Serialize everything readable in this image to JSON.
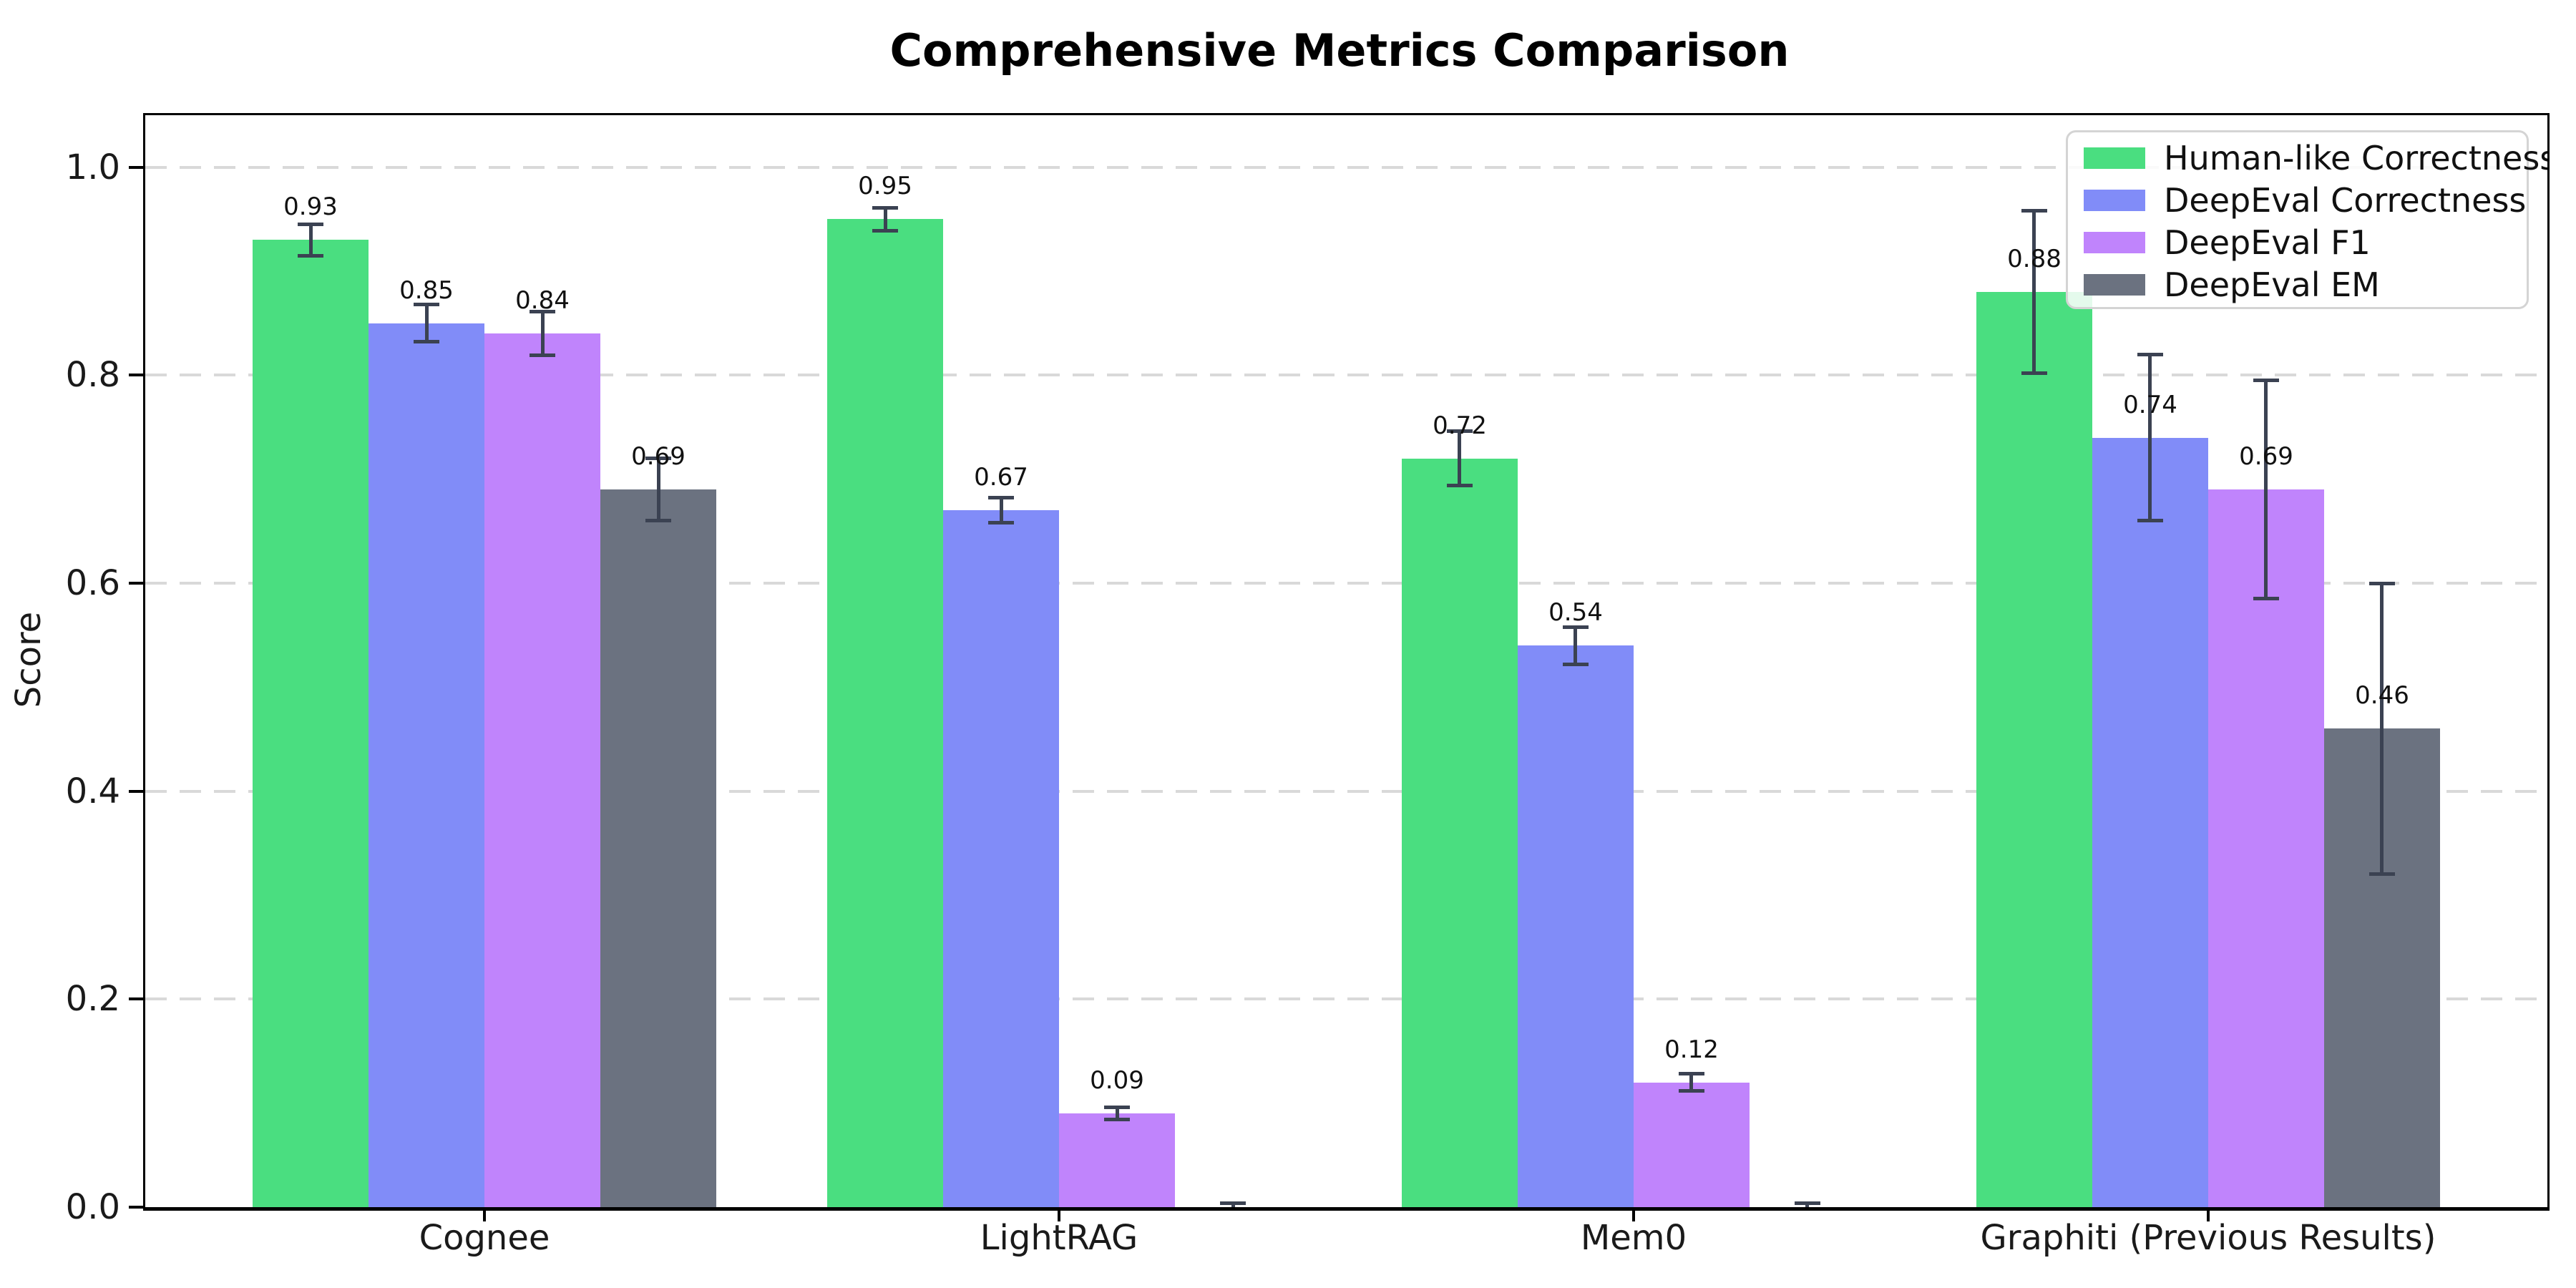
{
  "title": "Comprehensive Metrics Comparison",
  "chart_data": {
    "type": "bar",
    "title": "Comprehensive Metrics Comparison",
    "xlabel": "",
    "ylabel": "Score",
    "ylim": [
      0,
      1.05
    ],
    "yticks": [
      "0.0",
      "0.2",
      "0.4",
      "0.6",
      "0.8",
      "1.0"
    ],
    "grid": "horizontal dashed gridlines at each y tick",
    "legend_position": "upper right",
    "categories": [
      "Cognee",
      "LightRAG",
      "Mem0",
      "Graphiti (Previous Results)"
    ],
    "series": [
      {
        "name": "Human-like Correctness",
        "color": "#4ade80",
        "values": [
          0.93,
          0.95,
          0.72,
          0.88
        ],
        "errors": [
          0.015,
          0.011,
          0.026,
          0.078
        ],
        "labels": [
          "0.93",
          "0.95",
          "0.72",
          "0.88"
        ]
      },
      {
        "name": "DeepEval Correctness",
        "color": "#818cf8",
        "values": [
          0.85,
          0.67,
          0.54,
          0.74
        ],
        "errors": [
          0.018,
          0.012,
          0.018,
          0.08
        ],
        "labels": [
          "0.85",
          "0.67",
          "0.54",
          "0.74"
        ]
      },
      {
        "name": "DeepEval F1",
        "color": "#c084fc",
        "values": [
          0.84,
          0.09,
          0.12,
          0.69
        ],
        "errors": [
          0.021,
          0.006,
          0.008,
          0.105
        ],
        "labels": [
          "0.84",
          "0.09",
          "0.12",
          "0.69"
        ]
      },
      {
        "name": "DeepEval EM",
        "color": "#6b7280",
        "values": [
          0.69,
          0.0,
          0.0,
          0.46
        ],
        "errors": [
          0.03,
          0.004,
          0.004,
          0.14
        ],
        "labels": [
          "0.69",
          "",
          "",
          "0.46"
        ]
      }
    ]
  },
  "style": {
    "error_bar_color": "#3b4252",
    "grid_color": "#d9d9d9",
    "spine_color": "#000000",
    "legend_border_color": "#d4d4d4",
    "background": "#ffffff"
  }
}
